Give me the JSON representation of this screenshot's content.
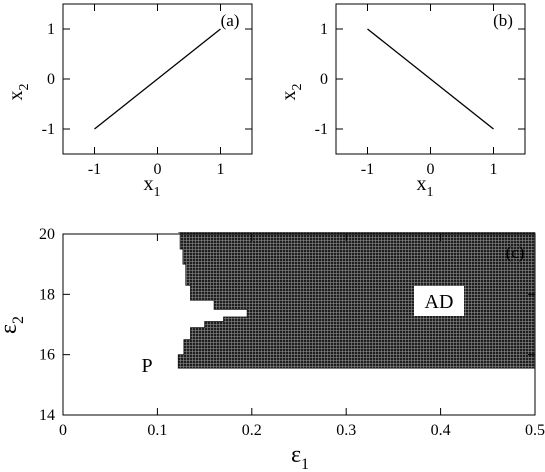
{
  "chart_data": [
    {
      "type": "line",
      "panel_label": "(a)",
      "xlabel": "x",
      "xlabel_sub": "1",
      "ylabel": "x",
      "ylabel_sub": "2",
      "xlim": [
        -1.5,
        1.5
      ],
      "ylim": [
        -1.5,
        1.5
      ],
      "xticks": [
        -1,
        0,
        1
      ],
      "yticks": [
        -1,
        0,
        1
      ],
      "xtick_labels": [
        "-1",
        "0",
        "1"
      ],
      "ytick_labels": [
        "-1",
        "0",
        "1"
      ],
      "series": [
        {
          "x": [
            -1,
            1
          ],
          "y": [
            -1,
            1
          ]
        }
      ]
    },
    {
      "type": "line",
      "panel_label": "(b)",
      "xlabel": "x",
      "xlabel_sub": "1",
      "ylabel": "x",
      "ylabel_sub": "2",
      "xlim": [
        -1.5,
        1.5
      ],
      "ylim": [
        -1.5,
        1.5
      ],
      "xticks": [
        -1,
        0,
        1
      ],
      "yticks": [
        -1,
        0,
        1
      ],
      "xtick_labels": [
        "-1",
        "0",
        "1"
      ],
      "ytick_labels": [
        "-1",
        "0",
        "1"
      ],
      "series": [
        {
          "x": [
            -1,
            1
          ],
          "y": [
            1,
            -1
          ]
        }
      ]
    },
    {
      "type": "area",
      "panel_label": "(c)",
      "xlabel": "ε",
      "xlabel_sub": "1",
      "ylabel": "ε",
      "ylabel_sub": "2",
      "xlim": [
        0,
        0.5
      ],
      "ylim": [
        14,
        20
      ],
      "xticks": [
        0,
        0.1,
        0.2,
        0.3,
        0.4,
        0.5
      ],
      "yticks": [
        14,
        16,
        18,
        20
      ],
      "xtick_labels": [
        "0",
        "0.1",
        "0.2",
        "0.3",
        "0.4",
        "0.5"
      ],
      "ytick_labels": [
        "14",
        "16",
        "18",
        "20"
      ],
      "region_labels": [
        "AD",
        "P"
      ],
      "ad_region_boundary": {
        "eps2": [
          15.55,
          16.0,
          16.5,
          16.9,
          17.1,
          17.25,
          17.5,
          17.8,
          18.3,
          19.0,
          19.5,
          20.05
        ],
        "eps1_left": [
          0.122,
          0.128,
          0.135,
          0.15,
          0.17,
          0.195,
          0.16,
          0.135,
          0.13,
          0.127,
          0.124,
          0.122
        ]
      },
      "ad_region_right": 0.5
    }
  ]
}
